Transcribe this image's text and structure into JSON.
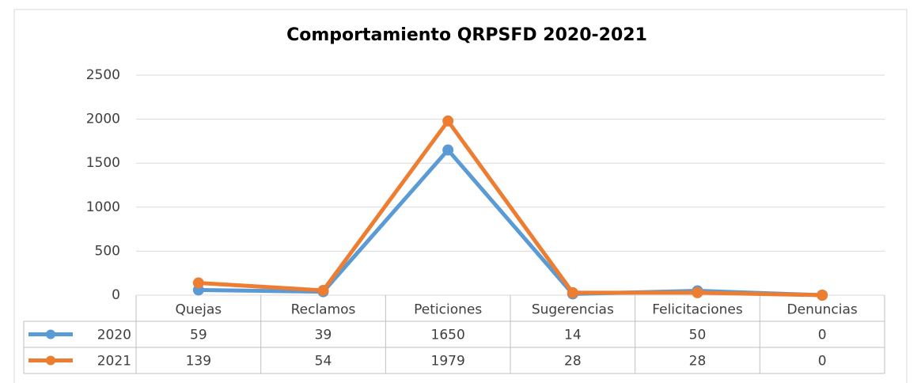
{
  "chart_data": {
    "type": "line",
    "title": "Comportamiento QRPSFD 2020-2021",
    "categories": [
      "Quejas",
      "Reclamos",
      "Peticiones",
      "Sugerencias",
      "Felicitaciones",
      "Denuncias"
    ],
    "series": [
      {
        "name": "2020",
        "color": "#5b9bd5",
        "values": [
          59,
          39,
          1650,
          14,
          50,
          0
        ]
      },
      {
        "name": "2021",
        "color": "#ed7d31",
        "values": [
          139,
          54,
          1979,
          28,
          28,
          0
        ]
      }
    ],
    "ylim": [
      0,
      2500
    ],
    "yticks": [
      0,
      500,
      1000,
      1500,
      2000,
      2500
    ],
    "grid": true,
    "data_table": true
  }
}
